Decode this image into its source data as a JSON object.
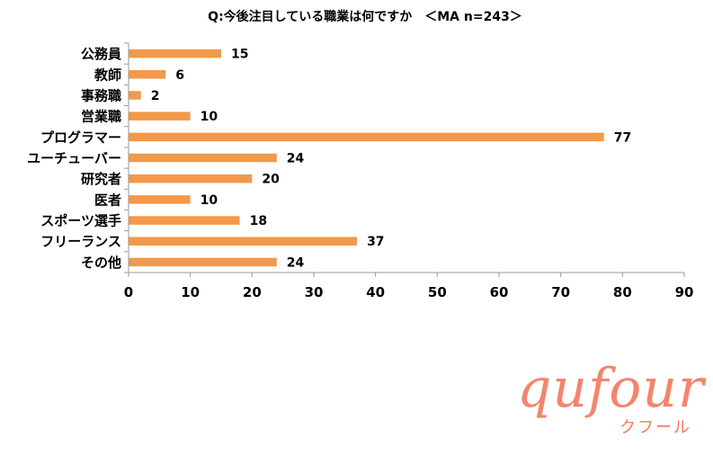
{
  "chart_data": {
    "type": "bar",
    "orientation": "horizontal",
    "title": "Q:今後注目している職業は何ですか　＜MA n=243＞",
    "categories": [
      "公務員",
      "教師",
      "事務職",
      "営業職",
      "プログラマー",
      "ユーチューバー",
      "研究者",
      "医者",
      "スポーツ選手",
      "フリーランス",
      "その他"
    ],
    "values": [
      15,
      6,
      2,
      10,
      77,
      24,
      20,
      10,
      18,
      37,
      24
    ],
    "xlim": [
      0,
      90
    ],
    "xticks": [
      0,
      10,
      20,
      30,
      40,
      50,
      60,
      70,
      80,
      90
    ],
    "bar_color": "#f2994a",
    "grid": false,
    "data_labels": true
  },
  "logo": {
    "main": "qufour",
    "sub": "クフール",
    "color": "#f07a5e"
  }
}
